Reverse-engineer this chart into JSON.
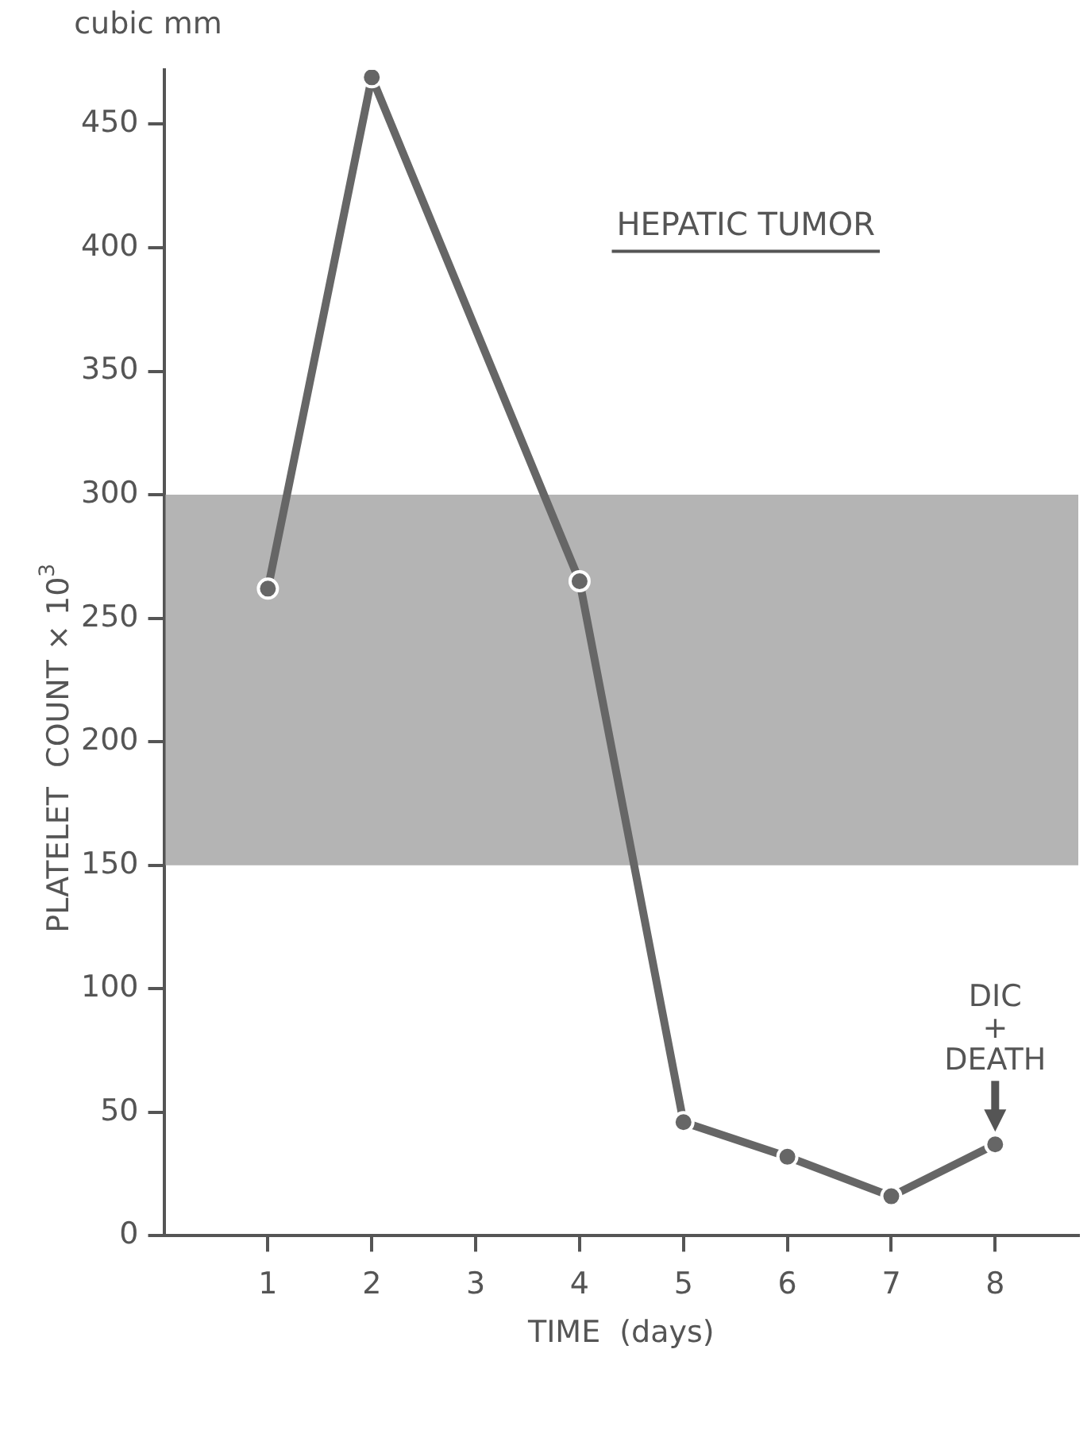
{
  "chart_data": {
    "type": "line",
    "title": "HEPATIC TUMOR",
    "xlabel": "TIME  (days)",
    "ylabel": "PLATELET  COUNT × 10$^{3}$",
    "x": [
      1,
      2,
      4,
      5,
      6,
      7,
      8
    ],
    "series": [
      {
        "color": "#666666",
        "values": [
          262,
          469,
          265,
          46,
          32,
          16,
          37
        ]
      }
    ],
    "xlim": [
      0,
      8.8
    ],
    "xticks": [
      1,
      2,
      3,
      4,
      5,
      6,
      7,
      8
    ],
    "ylim": [
      0,
      472
    ],
    "yticks": [
      0,
      50,
      100,
      150,
      200,
      250,
      300,
      350,
      400,
      450
    ],
    "bands": [
      {
        "axis": "y",
        "from": 150,
        "to": 300,
        "color": "#b4b4b4"
      }
    ],
    "annotations": [
      "cubic mm",
      {
        "text": "DIC\n+\nDEATH",
        "x": 8,
        "y": 37
      }
    ],
    "grid": false,
    "legend": false,
    "marker": "circle",
    "line_style": "solid"
  }
}
